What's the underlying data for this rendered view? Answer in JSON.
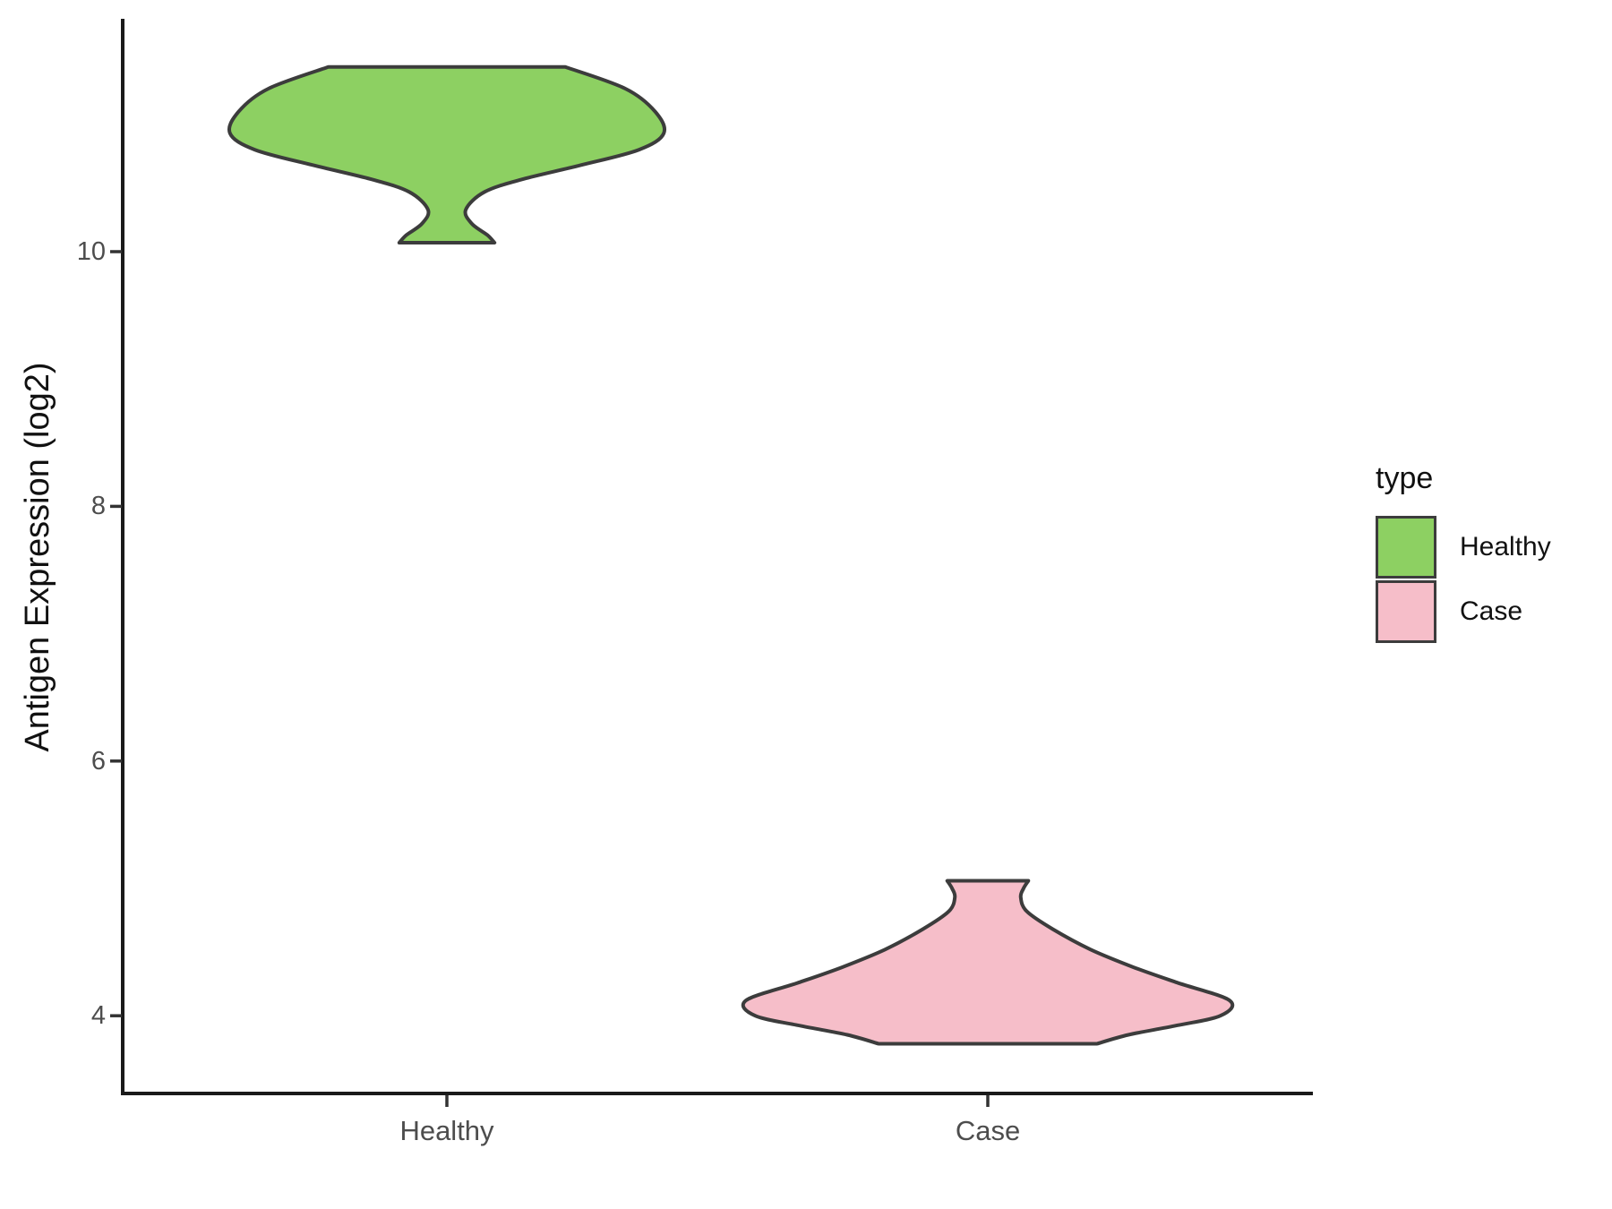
{
  "chart_data": {
    "type": "violin",
    "title": "",
    "xlabel": "",
    "ylabel": "Antigen Expression (log2)",
    "categories": [
      "Healthy",
      "Case"
    ],
    "y_ticks": [
      10,
      8,
      6,
      4
    ],
    "y_axis_visible_range": [
      3.4,
      11.8
    ],
    "grid": "off",
    "panel_background": "#ffffff",
    "axis_color": "#1a1a1a",
    "tick_label_color": "#4d4d4d",
    "outline_color": "#3c3c3c",
    "series": [
      {
        "name": "Healthy",
        "color": "#8dd062",
        "value_range": [
          10.07,
          11.45
        ],
        "peak_density_at": 10.93,
        "shape": "wide flat-topped cap (10.8-11.45) narrowing to a thin neck (~10.33) with a small flared flat base at 10.07",
        "density_profile": [
          {
            "v": 11.45,
            "w": 0.219
          },
          {
            "v": 11.28,
            "w": 0.33
          },
          {
            "v": 11.1,
            "w": 0.385
          },
          {
            "v": 10.93,
            "w": 0.401
          },
          {
            "v": 10.8,
            "w": 0.355
          },
          {
            "v": 10.68,
            "w": 0.248
          },
          {
            "v": 10.57,
            "w": 0.141
          },
          {
            "v": 10.47,
            "w": 0.07
          },
          {
            "v": 10.33,
            "w": 0.035
          },
          {
            "v": 10.22,
            "w": 0.046
          },
          {
            "v": 10.13,
            "w": 0.075
          },
          {
            "v": 10.07,
            "w": 0.088
          }
        ]
      },
      {
        "name": "Case",
        "color": "#f6bec9",
        "value_range": [
          3.78,
          5.06
        ],
        "peak_density_at": 4.12,
        "shape": "small flat-topped spout (5.06) with narrow neck (~4.93) widening into a broad body peaking near 4.1 with a flat base at 3.78",
        "density_profile": [
          {
            "v": 5.06,
            "w": 0.075
          },
          {
            "v": 5.0,
            "w": 0.066
          },
          {
            "v": 4.93,
            "w": 0.061
          },
          {
            "v": 4.82,
            "w": 0.072
          },
          {
            "v": 4.68,
            "w": 0.12
          },
          {
            "v": 4.52,
            "w": 0.19
          },
          {
            "v": 4.38,
            "w": 0.27
          },
          {
            "v": 4.26,
            "w": 0.35
          },
          {
            "v": 4.12,
            "w": 0.447
          },
          {
            "v": 4.0,
            "w": 0.43
          },
          {
            "v": 3.92,
            "w": 0.345
          },
          {
            "v": 3.85,
            "w": 0.26
          },
          {
            "v": 3.78,
            "w": 0.202
          }
        ]
      }
    ],
    "legend_position": "right"
  },
  "legend": {
    "title": "type",
    "items": [
      {
        "label": "Healthy"
      },
      {
        "label": "Case"
      }
    ]
  }
}
